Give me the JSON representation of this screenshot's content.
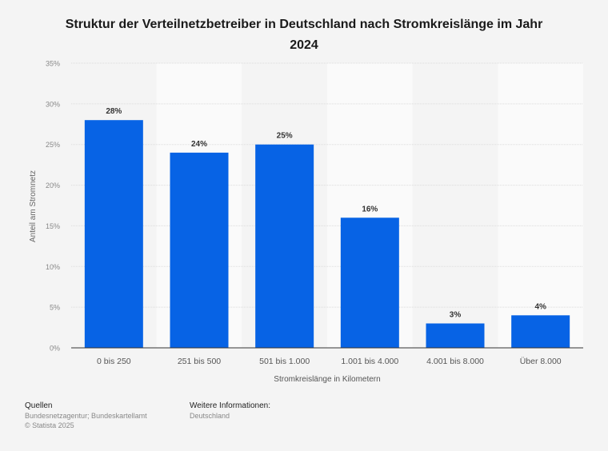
{
  "title_line1": "Struktur der Verteilnetzbetreiber in Deutschland nach Stromkreislänge im Jahr",
  "title_line2": "2024",
  "chart_data": {
    "type": "bar",
    "title": "Struktur der Verteilnetzbetreiber in Deutschland nach Stromkreislänge im Jahr 2024",
    "categories": [
      "0 bis 250",
      "251 bis 500",
      "501 bis 1.000",
      "1.001 bis 4.000",
      "4.001 bis 8.000",
      "Über 8.000"
    ],
    "values": [
      28,
      24,
      25,
      16,
      3,
      4
    ],
    "data_labels": [
      "28%",
      "24%",
      "25%",
      "16%",
      "3%",
      "4%"
    ],
    "xlabel": "Stromkreislänge in Kilometern",
    "ylabel": "Anteil am Stromnetz",
    "ylim": [
      0,
      35
    ],
    "yticks": [
      0,
      5,
      10,
      15,
      20,
      25,
      30,
      35
    ],
    "ytick_labels": [
      "0%",
      "5%",
      "10%",
      "15%",
      "20%",
      "25%",
      "30%",
      "35%"
    ],
    "grid": true,
    "bar_color": "#0763e5"
  },
  "footer": {
    "sources_heading": "Quellen",
    "sources_text": "Bundesnetzagentur; Bundeskartellamt",
    "copyright": "© Statista 2025",
    "info_heading": "Weitere Informationen:",
    "info_text": "Deutschland"
  }
}
